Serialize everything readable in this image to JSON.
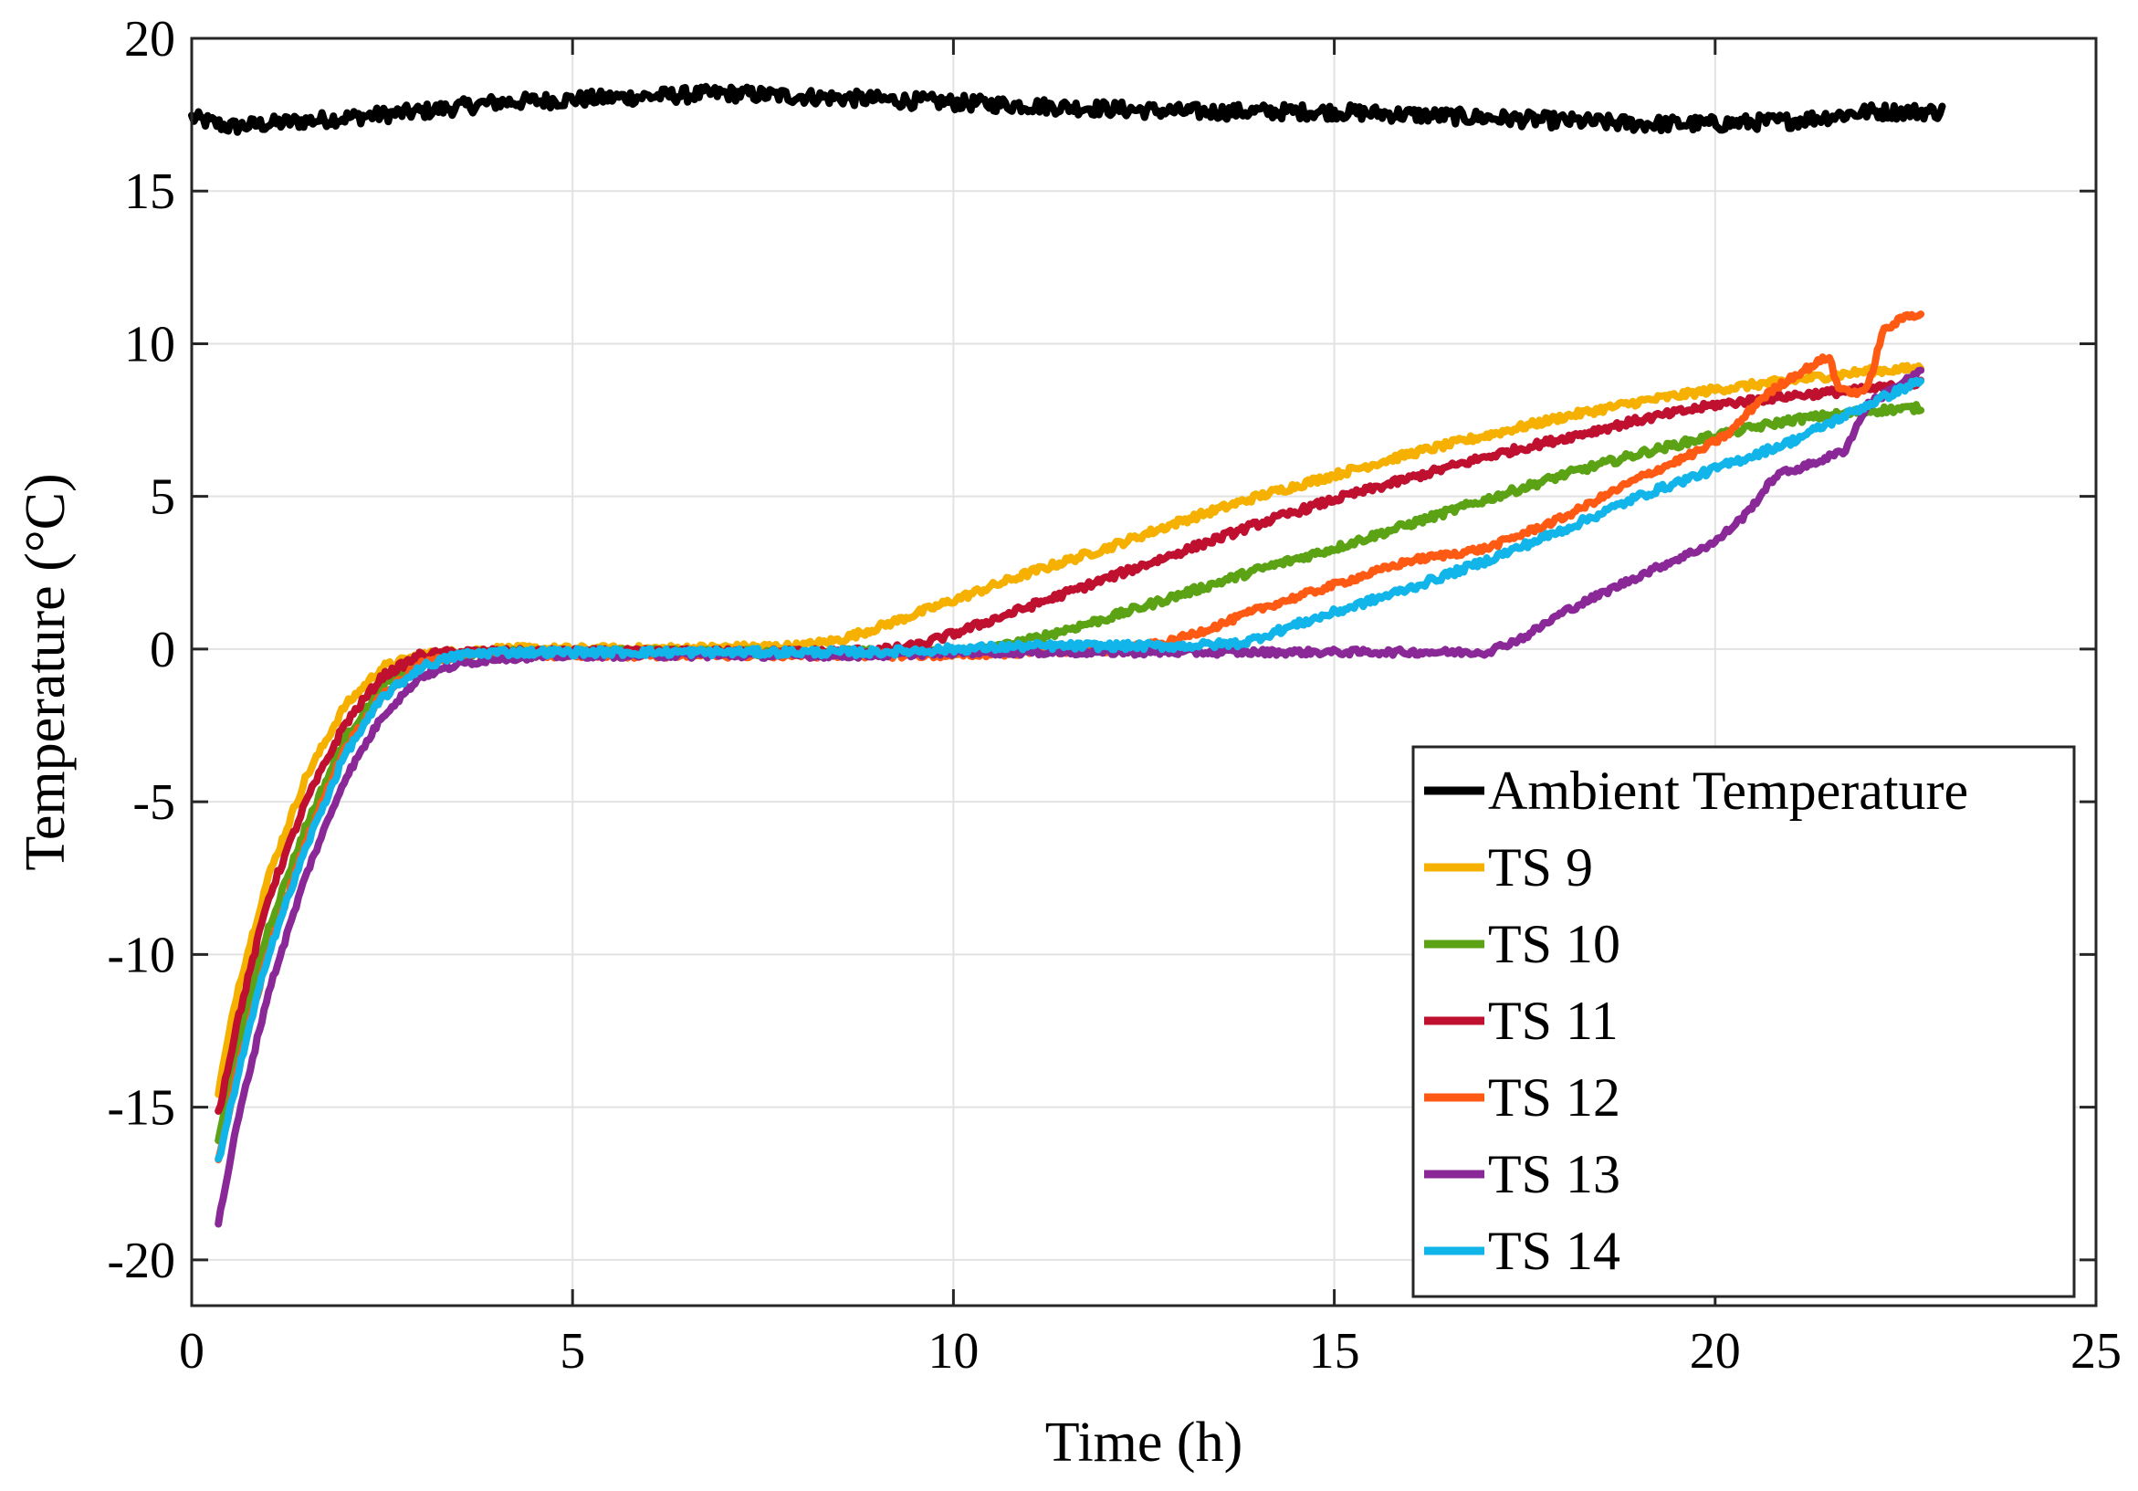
{
  "chart_data": {
    "type": "line",
    "title": "",
    "xlabel": "Time (h)",
    "ylabel": "Temperature (°C)",
    "xlim": [
      0,
      25
    ],
    "ylim": [
      -21.5,
      20
    ],
    "xticks": [
      0,
      5,
      10,
      15,
      20,
      25
    ],
    "yticks": [
      20,
      15,
      10,
      5,
      0,
      -5,
      -10,
      -15,
      -20
    ],
    "xtick_labels": [
      "0",
      "5",
      "10",
      "15",
      "20",
      "25"
    ],
    "ytick_labels": [
      "20",
      "15",
      "10",
      "5",
      "0",
      "-5",
      "-10",
      "-15",
      "-20"
    ],
    "grid": true,
    "legend_position": "bottom-right",
    "series": [
      {
        "name": "Ambient Temperature",
        "color": "#000000",
        "noise": 0.25,
        "x": [
          0,
          0.5,
          1,
          2,
          3,
          4,
          5,
          6,
          7,
          8,
          9,
          10,
          11,
          12,
          13,
          14,
          15,
          16,
          17,
          18,
          19,
          20,
          21,
          22,
          23
        ],
        "y": [
          17.4,
          17.1,
          17.2,
          17.4,
          17.6,
          17.9,
          18.0,
          18.1,
          18.2,
          18.1,
          18.0,
          17.9,
          17.8,
          17.7,
          17.6,
          17.6,
          17.6,
          17.5,
          17.4,
          17.3,
          17.2,
          17.2,
          17.3,
          17.6,
          17.6
        ]
      },
      {
        "name": "TS 9",
        "color": "#f5b000",
        "noise": 0.12,
        "x": [
          0.35,
          0.6,
          1.0,
          1.5,
          2.0,
          2.5,
          3.0,
          3.5,
          4.0,
          5.0,
          6.0,
          7.0,
          8.0,
          8.5,
          9.0,
          10.0,
          11.0,
          12.0,
          13.0,
          14.0,
          15.0,
          16.0,
          17.0,
          18.0,
          19.0,
          20.0,
          21.0,
          22.0,
          22.7
        ],
        "y": [
          -14.5,
          -11.2,
          -7.5,
          -4.2,
          -1.9,
          -0.6,
          -0.2,
          -0.1,
          0,
          0,
          0,
          0.05,
          0.1,
          0.3,
          0.7,
          1.6,
          2.5,
          3.3,
          4.2,
          5.0,
          5.7,
          6.4,
          7.0,
          7.6,
          8.1,
          8.5,
          8.8,
          9.1,
          9.2
        ]
      },
      {
        "name": "TS 10",
        "color": "#5ba315",
        "noise": 0.12,
        "x": [
          0.35,
          0.6,
          1.0,
          1.5,
          2.0,
          2.5,
          3.0,
          3.5,
          4.0,
          5.0,
          6.0,
          7.0,
          8.0,
          9.0,
          10.0,
          10.5,
          11.0,
          12.0,
          13.0,
          14.0,
          15.0,
          16.0,
          17.0,
          18.0,
          19.0,
          20.0,
          21.0,
          22.0,
          22.7
        ],
        "y": [
          -16.0,
          -13.0,
          -9.2,
          -5.8,
          -3.0,
          -1.2,
          -0.4,
          -0.2,
          -0.1,
          -0.1,
          -0.1,
          -0.1,
          -0.1,
          -0.1,
          -0.1,
          0.0,
          0.3,
          1.0,
          1.8,
          2.6,
          3.3,
          4.1,
          4.9,
          5.7,
          6.4,
          7.0,
          7.5,
          7.8,
          7.9
        ]
      },
      {
        "name": "TS 11",
        "color": "#bf1030",
        "noise": 0.12,
        "x": [
          0.35,
          0.6,
          1.0,
          1.5,
          2.0,
          2.5,
          3.0,
          3.5,
          4.0,
          5.0,
          6.0,
          7.0,
          8.0,
          9.0,
          9.5,
          10.0,
          11.0,
          12.0,
          13.0,
          14.0,
          15.0,
          16.0,
          17.0,
          18.0,
          19.0,
          20.0,
          21.0,
          22.0,
          22.7
        ],
        "y": [
          -15.2,
          -12.2,
          -8.2,
          -5.0,
          -2.5,
          -0.9,
          -0.2,
          -0.1,
          -0.1,
          -0.1,
          -0.1,
          -0.1,
          -0.1,
          -0.05,
          0.1,
          0.5,
          1.4,
          2.3,
          3.2,
          4.1,
          4.9,
          5.6,
          6.3,
          6.9,
          7.5,
          8.0,
          8.3,
          8.5,
          8.7
        ]
      },
      {
        "name": "TS 12",
        "color": "#ff5a14",
        "noise": 0.1,
        "x": [
          0.35,
          0.6,
          1.0,
          1.5,
          2.0,
          2.5,
          3.0,
          3.5,
          4.0,
          5.0,
          6.0,
          7.0,
          8.0,
          9.0,
          10.0,
          11.0,
          12.0,
          12.8,
          13.5,
          14.0,
          15.0,
          16.0,
          17.0,
          18.0,
          19.0,
          19.8,
          20.2,
          20.6,
          21.0,
          21.5,
          21.6,
          21.8,
          22.0,
          22.2,
          22.5,
          22.7
        ],
        "y": [
          -16.8,
          -13.8,
          -10.0,
          -6.3,
          -3.3,
          -1.5,
          -0.5,
          -0.2,
          -0.2,
          -0.2,
          -0.2,
          -0.2,
          -0.2,
          -0.2,
          -0.2,
          -0.1,
          -0.05,
          0.2,
          0.8,
          1.3,
          2.1,
          2.9,
          3.3,
          4.3,
          5.6,
          6.5,
          7.1,
          8.2,
          8.9,
          9.6,
          8.6,
          8.4,
          8.5,
          10.4,
          10.9,
          11.0
        ]
      },
      {
        "name": "TS 13",
        "color": "#8a2898",
        "noise": 0.1,
        "x": [
          0.35,
          0.6,
          1.0,
          1.5,
          2.0,
          2.5,
          3.0,
          3.5,
          4.0,
          5.0,
          6.0,
          7.0,
          8.0,
          9.0,
          10.0,
          11.0,
          12.0,
          13.0,
          14.0,
          15.0,
          16.0,
          17.0,
          17.5,
          18.0,
          19.0,
          20.0,
          20.4,
          20.8,
          21.2,
          21.7,
          22.0,
          22.7
        ],
        "y": [
          -18.8,
          -15.5,
          -11.3,
          -7.4,
          -4.3,
          -2.2,
          -0.9,
          -0.5,
          -0.3,
          -0.2,
          -0.2,
          -0.2,
          -0.2,
          -0.2,
          -0.1,
          -0.1,
          -0.1,
          -0.1,
          -0.1,
          -0.1,
          -0.1,
          -0.1,
          0.4,
          1.2,
          2.4,
          3.5,
          4.4,
          5.7,
          6.0,
          6.5,
          8.0,
          9.1
        ]
      },
      {
        "name": "TS 14",
        "color": "#12b5ea",
        "noise": 0.12,
        "x": [
          0.35,
          0.6,
          1.0,
          1.5,
          2.0,
          2.5,
          3.0,
          3.5,
          4.0,
          5.0,
          6.0,
          7.0,
          8.0,
          9.0,
          10.0,
          11.0,
          12.0,
          13.0,
          13.8,
          14.5,
          15.0,
          16.0,
          17.0,
          18.0,
          19.0,
          20.0,
          21.0,
          22.0,
          22.7
        ],
        "y": [
          -16.8,
          -14.0,
          -10.0,
          -6.5,
          -3.5,
          -1.6,
          -0.6,
          -0.2,
          -0.1,
          -0.1,
          -0.1,
          -0.1,
          -0.1,
          -0.1,
          0.0,
          0.1,
          0.1,
          0.1,
          0.2,
          0.8,
          1.2,
          2.0,
          2.9,
          3.9,
          5.0,
          5.9,
          6.8,
          8.0,
          8.8
        ]
      }
    ]
  }
}
